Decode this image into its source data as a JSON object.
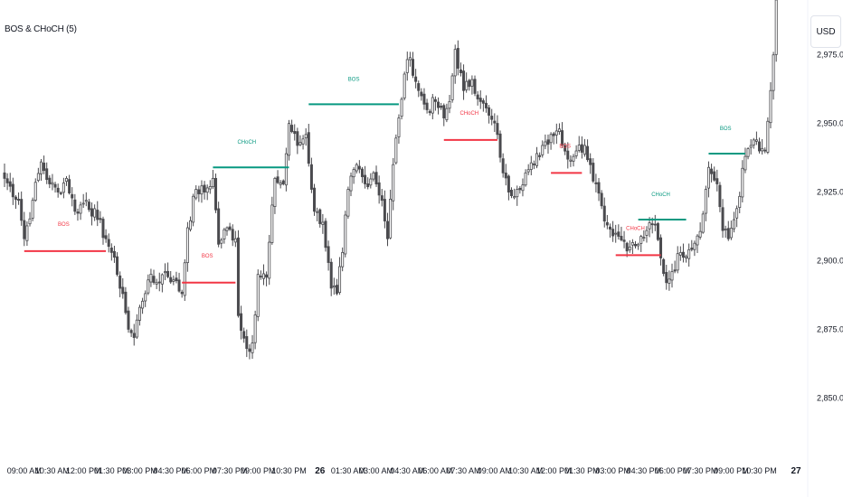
{
  "indicator": {
    "title": "BOS & CHoCH (5)"
  },
  "price_axis": {
    "currency": "USD"
  },
  "colors": {
    "bullish_candle": "#ffffff",
    "bearish_candle": "#4a4a4e",
    "wick": "#4a4a4e",
    "bull_structure": "#089981",
    "bear_structure": "#f23645",
    "axis_text": "#131722"
  },
  "chart_data": {
    "type": "candlestick",
    "title": "BOS & CHoCH (5)",
    "y_axis": {
      "range": [
        2832,
        2995
      ],
      "ticks": [
        {
          "value": 2850,
          "label": "2,850.00"
        },
        {
          "value": 2875,
          "label": "2,875.00"
        },
        {
          "value": 2900,
          "label": "2,900.00"
        },
        {
          "value": 2925,
          "label": "2,925.00"
        },
        {
          "value": 2950,
          "label": "2,950.00"
        },
        {
          "value": 2975,
          "label": "2,975.00"
        }
      ]
    },
    "x_axis": {
      "bar_range": [
        0,
        281
      ],
      "ticks": [
        {
          "bar": 7,
          "label": "09:00 AM",
          "bold": false
        },
        {
          "bar": 17,
          "label": "10:30 AM",
          "bold": false
        },
        {
          "bar": 28,
          "label": "12:00 PM",
          "bold": false
        },
        {
          "bar": 38,
          "label": "01:30 PM",
          "bold": false
        },
        {
          "bar": 48,
          "label": "03:00 PM",
          "bold": false
        },
        {
          "bar": 59,
          "label": "04:30 PM",
          "bold": false
        },
        {
          "bar": 69,
          "label": "06:00 PM",
          "bold": false
        },
        {
          "bar": 80,
          "label": "07:30 PM",
          "bold": false
        },
        {
          "bar": 90,
          "label": "09:00 PM",
          "bold": false
        },
        {
          "bar": 101,
          "label": "10:30 PM",
          "bold": false
        },
        {
          "bar": 112,
          "label": "26",
          "bold": true
        },
        {
          "bar": 122,
          "label": "01:30 AM",
          "bold": false
        },
        {
          "bar": 132,
          "label": "03:00 AM",
          "bold": false
        },
        {
          "bar": 143,
          "label": "04:30 AM",
          "bold": false
        },
        {
          "bar": 153,
          "label": "06:00 AM",
          "bold": false
        },
        {
          "bar": 163,
          "label": "07:30 AM",
          "bold": false
        },
        {
          "bar": 174,
          "label": "09:00 AM",
          "bold": false
        },
        {
          "bar": 185,
          "label": "10:30 AM",
          "bold": false
        },
        {
          "bar": 195,
          "label": "12:00 PM",
          "bold": false
        },
        {
          "bar": 205,
          "label": "01:30 PM",
          "bold": false
        },
        {
          "bar": 216,
          "label": "03:00 PM",
          "bold": false
        },
        {
          "bar": 227,
          "label": "04:30 PM",
          "bold": false
        },
        {
          "bar": 237,
          "label": "06:00 PM",
          "bold": false
        },
        {
          "bar": 247,
          "label": "07:30 PM",
          "bold": false
        },
        {
          "bar": 258,
          "label": "09:00 PM",
          "bold": false
        },
        {
          "bar": 268,
          "label": "10:30 PM",
          "bold": false
        },
        {
          "bar": 281,
          "label": "27",
          "bold": true
        }
      ]
    },
    "anchors": [
      [
        0,
        2930
      ],
      [
        5,
        2922
      ],
      [
        7,
        2908
      ],
      [
        10,
        2922
      ],
      [
        13,
        2936
      ],
      [
        16,
        2928
      ],
      [
        19,
        2925
      ],
      [
        22,
        2930
      ],
      [
        25,
        2918
      ],
      [
        29,
        2922
      ],
      [
        33,
        2915
      ],
      [
        36,
        2908
      ],
      [
        38,
        2903
      ],
      [
        40,
        2895
      ],
      [
        42,
        2888
      ],
      [
        44,
        2875
      ],
      [
        46,
        2872
      ],
      [
        48,
        2883
      ],
      [
        51,
        2893
      ],
      [
        54,
        2892
      ],
      [
        57,
        2896
      ],
      [
        60,
        2893
      ],
      [
        63,
        2888
      ],
      [
        65,
        2912
      ],
      [
        68,
        2926
      ],
      [
        71,
        2925
      ],
      [
        74,
        2930
      ],
      [
        76,
        2906
      ],
      [
        79,
        2912
      ],
      [
        82,
        2908
      ],
      [
        83,
        2880
      ],
      [
        86,
        2868
      ],
      [
        88,
        2870
      ],
      [
        90,
        2895
      ],
      [
        93,
        2894
      ],
      [
        96,
        2930
      ],
      [
        99,
        2928
      ],
      [
        101,
        2950
      ],
      [
        104,
        2942
      ],
      [
        107,
        2946
      ],
      [
        110,
        2918
      ],
      [
        113,
        2914
      ],
      [
        116,
        2890
      ],
      [
        118,
        2888
      ],
      [
        120,
        2903
      ],
      [
        122,
        2926
      ],
      [
        125,
        2935
      ],
      [
        128,
        2928
      ],
      [
        131,
        2932
      ],
      [
        134,
        2922
      ],
      [
        136,
        2908
      ],
      [
        138,
        2935
      ],
      [
        140,
        2952
      ],
      [
        142,
        2968
      ],
      [
        144,
        2974
      ],
      [
        147,
        2962
      ],
      [
        150,
        2955
      ],
      [
        153,
        2958
      ],
      [
        156,
        2952
      ],
      [
        158,
        2958
      ],
      [
        160,
        2977
      ],
      [
        163,
        2962
      ],
      [
        166,
        2966
      ],
      [
        169,
        2958
      ],
      [
        172,
        2953
      ],
      [
        175,
        2946
      ],
      [
        177,
        2932
      ],
      [
        179,
        2925
      ],
      [
        182,
        2926
      ],
      [
        185,
        2932
      ],
      [
        188,
        2935
      ],
      [
        191,
        2942
      ],
      [
        194,
        2946
      ],
      [
        197,
        2948
      ],
      [
        200,
        2937
      ],
      [
        203,
        2940
      ],
      [
        206,
        2942
      ],
      [
        208,
        2935
      ],
      [
        210,
        2928
      ],
      [
        212,
        2920
      ],
      [
        214,
        2913
      ],
      [
        217,
        2910
      ],
      [
        220,
        2907
      ],
      [
        222,
        2905
      ],
      [
        225,
        2906
      ],
      [
        228,
        2911
      ],
      [
        231,
        2913
      ],
      [
        233,
        2901
      ],
      [
        235,
        2892
      ],
      [
        237,
        2896
      ],
      [
        240,
        2903
      ],
      [
        243,
        2904
      ],
      [
        246,
        2909
      ],
      [
        248,
        2917
      ],
      [
        250,
        2934
      ],
      [
        253,
        2928
      ],
      [
        255,
        2911
      ],
      [
        257,
        2908
      ],
      [
        260,
        2919
      ],
      [
        263,
        2938
      ],
      [
        266,
        2944
      ],
      [
        268,
        2940
      ],
      [
        270,
        2940
      ],
      [
        272,
        2962
      ],
      [
        273,
        2975
      ],
      [
        274,
        2995
      ]
    ],
    "structures": [
      {
        "label": "BOS",
        "type": "bearish",
        "start_bar": 7,
        "end_bar": 36,
        "price": 2903.5,
        "label_bar": 21
      },
      {
        "label": "BOS",
        "type": "bearish",
        "start_bar": 63,
        "end_bar": 82,
        "price": 2892,
        "label_bar": 72
      },
      {
        "label": "CHoCH",
        "type": "bullish",
        "start_bar": 74,
        "end_bar": 101,
        "price": 2934,
        "label_bar": 86
      },
      {
        "label": "BOS",
        "type": "bullish",
        "start_bar": 108,
        "end_bar": 140,
        "price": 2957,
        "label_bar": 124
      },
      {
        "label": "CHoCH",
        "type": "bearish",
        "start_bar": 156,
        "end_bar": 175,
        "price": 2944,
        "label_bar": 165
      },
      {
        "label": "BOS",
        "type": "bearish",
        "start_bar": 194,
        "end_bar": 205,
        "price": 2932,
        "label_bar": 199
      },
      {
        "label": "CHoCH",
        "type": "bearish",
        "start_bar": 217,
        "end_bar": 233,
        "price": 2902,
        "label_bar": 224
      },
      {
        "label": "CHoCH",
        "type": "bullish",
        "start_bar": 225,
        "end_bar": 242,
        "price": 2915,
        "label_bar": 233
      },
      {
        "label": "BOS",
        "type": "bullish",
        "start_bar": 250,
        "end_bar": 263,
        "price": 2939,
        "label_bar": 256
      }
    ],
    "grid": false,
    "legend": "none"
  }
}
